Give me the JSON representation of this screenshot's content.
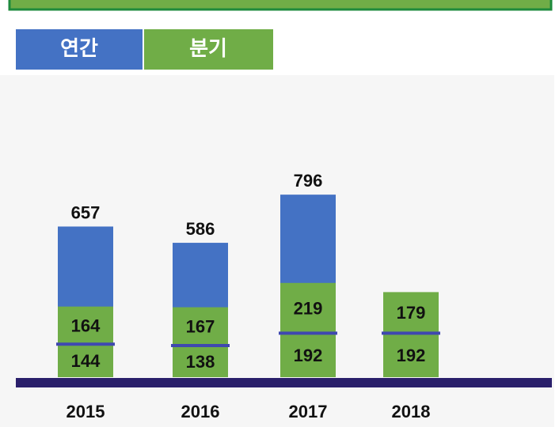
{
  "chart_data": {
    "type": "bar",
    "categories": [
      "2015",
      "2016",
      "2017",
      "2018"
    ],
    "series": [
      {
        "name": "연간",
        "color": "#4472c4",
        "values": [
          657,
          586,
          796,
          null
        ]
      },
      {
        "name": "분기",
        "color": "#70ad47",
        "values": [
          [
            144,
            164
          ],
          [
            138,
            167
          ],
          [
            192,
            219
          ],
          [
            192,
            179
          ]
        ]
      }
    ],
    "ylim": [
      0,
      900
    ]
  }
}
